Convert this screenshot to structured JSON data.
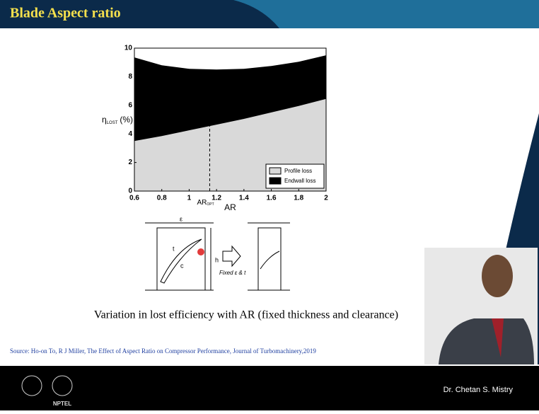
{
  "header": {
    "title": "Blade Aspect ratio"
  },
  "chart_data": {
    "type": "stacked-area",
    "ylabel": "η",
    "ylabel_sub": "LOST",
    "ylabel_unit": "(%)",
    "xlabel": "AR",
    "x": [
      0.6,
      0.8,
      1.0,
      1.2,
      1.4,
      1.6,
      1.8,
      2.0
    ],
    "series": [
      {
        "name": "Profile loss",
        "color": "#d9d9d9",
        "values": [
          3.5,
          3.85,
          4.25,
          4.65,
          5.05,
          5.5,
          5.95,
          6.45
        ]
      },
      {
        "name": "Endwall loss",
        "color": "#000000",
        "values": [
          5.85,
          4.95,
          4.3,
          3.85,
          3.5,
          3.25,
          3.1,
          3.05
        ]
      }
    ],
    "xlim": [
      0.6,
      2
    ],
    "xticks": [
      0.6,
      0.8,
      1,
      1.2,
      1.4,
      1.6,
      1.8,
      2
    ],
    "ylim": [
      0,
      10
    ],
    "yticks": [
      0,
      2,
      4,
      6,
      8,
      10
    ],
    "legend": "lower-right",
    "annotation": {
      "text": "AR",
      "sub": "OPT",
      "x": 1.15
    }
  },
  "diagram": {
    "clearance": "ε",
    "thickness": "t",
    "chord": "c",
    "height": "h",
    "arrow_label": "Fixed ε & t"
  },
  "caption": "Variation in lost efficiency with AR (fixed thickness and clearance)",
  "source": "Source: Ho-on To, R J Miller, The Effect of Aspect Ratio on Compressor Performance, Journal of Turbomachinery,2019",
  "footer": {
    "presenter": "Dr. Chetan S. Mistry",
    "logo": "NPTEL"
  }
}
